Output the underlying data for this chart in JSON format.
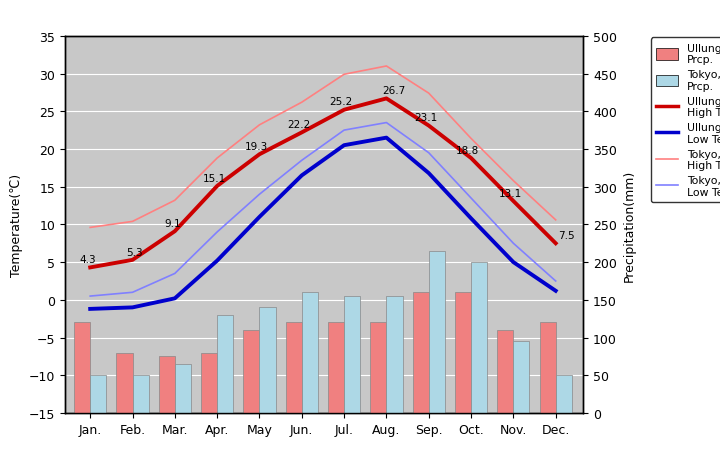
{
  "months": [
    "Jan.",
    "Feb.",
    "Mar.",
    "Apr.",
    "May",
    "Jun.",
    "Jul.",
    "Aug.",
    "Sep.",
    "Oct.",
    "Nov.",
    "Dec."
  ],
  "ullung_high_temp": [
    4.3,
    5.3,
    9.1,
    15.1,
    19.3,
    22.2,
    25.2,
    26.7,
    23.1,
    18.8,
    13.1,
    7.5
  ],
  "ullung_low_temp": [
    -1.2,
    -1.0,
    0.2,
    5.2,
    11.0,
    16.5,
    20.5,
    21.5,
    16.8,
    10.8,
    5.0,
    1.2
  ],
  "tokyo_high_temp": [
    9.6,
    10.4,
    13.2,
    18.8,
    23.2,
    26.2,
    29.9,
    31.0,
    27.4,
    21.4,
    15.8,
    10.6
  ],
  "tokyo_low_temp": [
    0.5,
    1.0,
    3.5,
    9.0,
    14.0,
    18.5,
    22.5,
    23.5,
    19.5,
    13.5,
    7.5,
    2.5
  ],
  "ullung_prcp_mm": [
    120,
    80,
    75,
    80,
    110,
    120,
    120,
    120,
    160,
    160,
    110,
    120
  ],
  "tokyo_prcp_mm": [
    50,
    50,
    65,
    130,
    140,
    160,
    155,
    155,
    215,
    200,
    95,
    50
  ],
  "temp_ylim_min": -15,
  "temp_ylim_max": 35,
  "prcp_ylim_min": 0,
  "prcp_ylim_max": 500,
  "plot_bg_color": "#c8c8c8",
  "ullung_high_color": "#cc0000",
  "ullung_low_color": "#0000cc",
  "tokyo_high_color": "#ff8080",
  "tokyo_low_color": "#8080ff",
  "ullung_prcp_color": "#f08080",
  "tokyo_prcp_color": "#add8e6",
  "title_left": "Temperature(℃)",
  "title_right": "Precipitation(mm)"
}
